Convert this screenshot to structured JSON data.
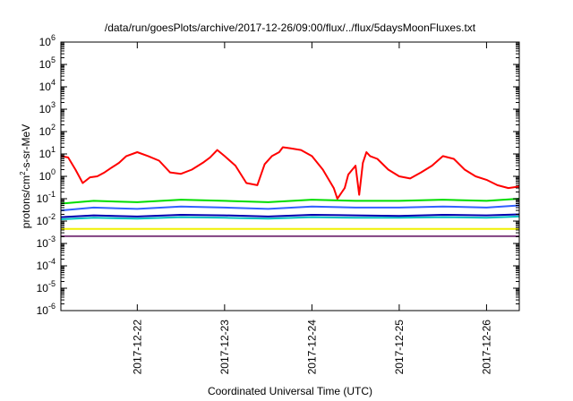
{
  "chart_data": {
    "type": "line",
    "title": "/data/run/goesPlots/archive/2017-12-26/09:00/flux/../flux/5daysMoonFluxes.txt",
    "xlabel": "Coordinated Universal Time (UTC)",
    "ylabel": {
      "prefix": "protons/cm",
      "superscript": "2",
      "suffix": "-s-sr-MeV"
    },
    "yscale": "log",
    "ylim": [
      1e-06,
      1000000.0
    ],
    "ytick_labels": [
      {
        "base": "10",
        "exp": "-6"
      },
      {
        "base": "10",
        "exp": "-5"
      },
      {
        "base": "10",
        "exp": "-4"
      },
      {
        "base": "10",
        "exp": "-3"
      },
      {
        "base": "10",
        "exp": "-2"
      },
      {
        "base": "10",
        "exp": "-1"
      },
      {
        "base": "10",
        "exp": "0"
      },
      {
        "base": "10",
        "exp": "1"
      },
      {
        "base": "10",
        "exp": "2"
      },
      {
        "base": "10",
        "exp": "3"
      },
      {
        "base": "10",
        "exp": "4"
      },
      {
        "base": "10",
        "exp": "5"
      },
      {
        "base": "10",
        "exp": "6"
      }
    ],
    "xlim": [
      "2017-12-21 03:00",
      "2017-12-26 09:00"
    ],
    "xtick_labels": [
      "2017-12-22",
      "2017-12-23",
      "2017-12-24",
      "2017-12-25",
      "2017-12-26"
    ],
    "xtick_values": [
      "2017-12-22 00:00",
      "2017-12-23 00:00",
      "2017-12-24 00:00",
      "2017-12-25 00:00",
      "2017-12-26 00:00"
    ],
    "grid": false,
    "legend": "none",
    "series": [
      {
        "color": "#ff0000",
        "x": [
          "2017-12-21 03:00",
          "2017-12-21 05:00",
          "2017-12-21 07:00",
          "2017-12-21 09:00",
          "2017-12-21 11:00",
          "2017-12-21 13:00",
          "2017-12-21 15:00",
          "2017-12-21 17:00",
          "2017-12-21 19:00",
          "2017-12-21 21:00",
          "2017-12-22 00:00",
          "2017-12-22 03:00",
          "2017-12-22 06:00",
          "2017-12-22 09:00",
          "2017-12-22 12:00",
          "2017-12-22 15:00",
          "2017-12-22 18:00",
          "2017-12-22 20:00",
          "2017-12-22 22:00",
          "2017-12-23 00:00",
          "2017-12-23 03:00",
          "2017-12-23 06:00",
          "2017-12-23 09:00",
          "2017-12-23 11:00",
          "2017-12-23 13:00",
          "2017-12-23 15:00",
          "2017-12-23 16:00",
          "2017-12-23 18:00",
          "2017-12-23 21:00",
          "2017-12-24 00:00",
          "2017-12-24 03:00",
          "2017-12-24 06:00",
          "2017-12-24 07:00",
          "2017-12-24 09:00",
          "2017-12-24 10:00",
          "2017-12-24 12:00",
          "2017-12-24 13:00",
          "2017-12-24 14:00",
          "2017-12-24 15:00",
          "2017-12-24 16:00",
          "2017-12-24 18:00",
          "2017-12-24 21:00",
          "2017-12-25 00:00",
          "2017-12-25 03:00",
          "2017-12-25 06:00",
          "2017-12-25 09:00",
          "2017-12-25 12:00",
          "2017-12-25 15:00",
          "2017-12-25 18:00",
          "2017-12-25 21:00",
          "2017-12-26 00:00",
          "2017-12-26 03:00",
          "2017-12-26 06:00",
          "2017-12-26 09:00"
        ],
        "y": [
          8,
          7,
          2,
          0.5,
          0.9,
          1.0,
          1.5,
          2.5,
          4,
          8,
          12,
          8,
          5,
          1.5,
          1.3,
          2,
          4,
          7,
          15,
          8,
          3,
          0.5,
          0.4,
          3.5,
          8,
          12,
          20,
          18,
          15,
          8,
          2,
          0.3,
          0.1,
          0.3,
          1.2,
          3,
          0.15,
          4,
          12,
          8,
          6,
          2,
          1,
          0.8,
          1.5,
          3,
          8,
          6,
          2,
          1,
          0.7,
          0.4,
          0.3,
          0.35
        ]
      },
      {
        "color": "#00dd00",
        "x": [
          "2017-12-21 03:00",
          "2017-12-21 12:00",
          "2017-12-22 00:00",
          "2017-12-22 12:00",
          "2017-12-23 00:00",
          "2017-12-23 12:00",
          "2017-12-24 00:00",
          "2017-12-24 12:00",
          "2017-12-25 00:00",
          "2017-12-25 12:00",
          "2017-12-26 00:00",
          "2017-12-26 09:00"
        ],
        "y": [
          0.06,
          0.08,
          0.07,
          0.09,
          0.08,
          0.07,
          0.09,
          0.08,
          0.08,
          0.09,
          0.08,
          0.1
        ]
      },
      {
        "color": "#00c0c0",
        "x": [
          "2017-12-21 03:00",
          "2017-12-21 12:00",
          "2017-12-22 00:00",
          "2017-12-22 12:00",
          "2017-12-23 00:00",
          "2017-12-23 12:00",
          "2017-12-24 00:00",
          "2017-12-24 12:00",
          "2017-12-25 00:00",
          "2017-12-25 12:00",
          "2017-12-26 00:00",
          "2017-12-26 09:00"
        ],
        "y": [
          0.012,
          0.014,
          0.013,
          0.015,
          0.014,
          0.013,
          0.015,
          0.014,
          0.014,
          0.015,
          0.014,
          0.016
        ]
      },
      {
        "color": "#3060ff",
        "x": [
          "2017-12-21 03:00",
          "2017-12-21 12:00",
          "2017-12-22 00:00",
          "2017-12-22 12:00",
          "2017-12-23 00:00",
          "2017-12-23 12:00",
          "2017-12-24 00:00",
          "2017-12-24 12:00",
          "2017-12-25 00:00",
          "2017-12-25 12:00",
          "2017-12-26 00:00",
          "2017-12-26 09:00"
        ],
        "y": [
          0.03,
          0.04,
          0.035,
          0.045,
          0.04,
          0.035,
          0.045,
          0.04,
          0.04,
          0.045,
          0.04,
          0.05
        ]
      },
      {
        "color": "#0000b0",
        "x": [
          "2017-12-21 03:00",
          "2017-12-21 12:00",
          "2017-12-22 00:00",
          "2017-12-22 12:00",
          "2017-12-23 00:00",
          "2017-12-23 12:00",
          "2017-12-24 00:00",
          "2017-12-24 12:00",
          "2017-12-25 00:00",
          "2017-12-25 12:00",
          "2017-12-26 00:00",
          "2017-12-26 09:00"
        ],
        "y": [
          0.015,
          0.018,
          0.016,
          0.019,
          0.018,
          0.016,
          0.019,
          0.018,
          0.017,
          0.019,
          0.018,
          0.02
        ]
      },
      {
        "color": "#f0f000",
        "x": [
          "2017-12-21 03:00",
          "2017-12-26 09:00"
        ],
        "y": [
          0.0045,
          0.0045
        ]
      },
      {
        "color": "#804080",
        "x": [
          "2017-12-21 03:00",
          "2017-12-26 09:00"
        ],
        "y": [
          0.0021,
          0.0021
        ]
      }
    ]
  }
}
